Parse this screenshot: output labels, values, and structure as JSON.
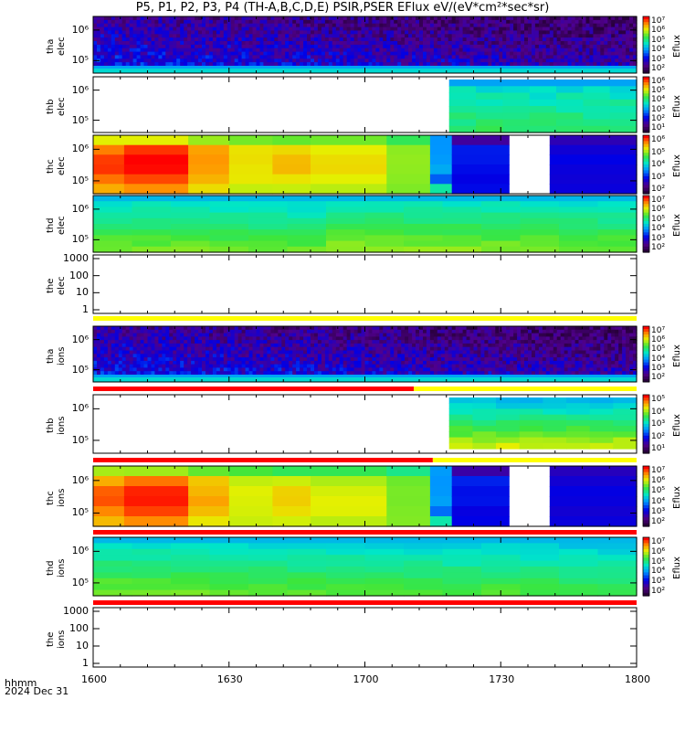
{
  "title": "P5, P1, P2, P3, P4 (TH-A,B,C,D,E) PSIR,PSER EFlux eV/(eV*cm²*sec*sr)",
  "footer": {
    "line1": "hhmm",
    "line2": "2024 Dec 31"
  },
  "chart_data": [
    {
      "type": "heatmap",
      "probe": "tha",
      "species": "elec",
      "ylabel_lines": [
        "tha",
        "elec"
      ],
      "yscale": "log",
      "yticks": [
        "10⁶",
        "10⁵"
      ],
      "colorbar_label": "Eflux",
      "colorbar_ticks": [
        "10⁷",
        "10⁶",
        "10⁵",
        "10⁴",
        "10³",
        "10²"
      ]
    },
    {
      "type": "heatmap",
      "probe": "thb",
      "species": "elec",
      "ylabel_lines": [
        "thb",
        "elec"
      ],
      "yscale": "log",
      "yticks": [
        "10⁶",
        "10⁵"
      ],
      "colorbar_label": "Eflux",
      "colorbar_ticks": [
        "10⁶",
        "10⁵",
        "10⁴",
        "10³",
        "10²",
        "10¹"
      ]
    },
    {
      "type": "heatmap",
      "probe": "thc",
      "species": "elec",
      "ylabel_lines": [
        "thc",
        "elec"
      ],
      "yscale": "log",
      "yticks": [
        "10⁶",
        "10⁵"
      ],
      "colorbar_label": "Eflux",
      "colorbar_ticks": [
        "10⁶",
        "10⁵",
        "10⁴",
        "10³",
        "10²"
      ]
    },
    {
      "type": "heatmap",
      "probe": "thd",
      "species": "elec",
      "ylabel_lines": [
        "thd",
        "elec"
      ],
      "yscale": "log",
      "yticks": [
        "10⁶",
        "10⁵"
      ],
      "colorbar_label": "Eflux",
      "colorbar_ticks": [
        "10⁷",
        "10⁶",
        "10⁵",
        "10⁴",
        "10³",
        "10²"
      ]
    },
    {
      "type": "heatmap",
      "probe": "the",
      "species": "elec",
      "ylabel_lines": [
        "the",
        "elec"
      ],
      "yscale": "log",
      "yticks": [
        "1000",
        "100",
        "10",
        "1"
      ],
      "colorbar_label": "",
      "colorbar_ticks": []
    },
    {
      "type": "heatmap",
      "probe": "tha",
      "species": "ions",
      "ylabel_lines": [
        "tha",
        "ions"
      ],
      "yscale": "log",
      "yticks": [
        "10⁶",
        "10⁵"
      ],
      "colorbar_label": "Eflux",
      "colorbar_ticks": [
        "10⁷",
        "10⁶",
        "10⁵",
        "10⁴",
        "10³",
        "10²"
      ]
    },
    {
      "type": "heatmap",
      "probe": "thb",
      "species": "ions",
      "ylabel_lines": [
        "thb",
        "ions"
      ],
      "yscale": "log",
      "yticks": [
        "10⁶",
        "10⁵"
      ],
      "colorbar_label": "Eflux",
      "colorbar_ticks": [
        "10⁵",
        "10⁴",
        "10³",
        "10²",
        "10¹"
      ]
    },
    {
      "type": "heatmap",
      "probe": "thc",
      "species": "ions",
      "ylabel_lines": [
        "thc",
        "ions"
      ],
      "yscale": "log",
      "yticks": [
        "10⁶",
        "10⁵"
      ],
      "colorbar_label": "Eflux",
      "colorbar_ticks": [
        "10⁷",
        "10⁶",
        "10⁵",
        "10⁴",
        "10³",
        "10²"
      ]
    },
    {
      "type": "heatmap",
      "probe": "thd",
      "species": "ions",
      "ylabel_lines": [
        "thd",
        "ions"
      ],
      "yscale": "log",
      "yticks": [
        "10⁶",
        "10⁵"
      ],
      "colorbar_label": "Eflux",
      "colorbar_ticks": [
        "10⁷",
        "10⁶",
        "10⁵",
        "10⁴",
        "10³",
        "10²"
      ]
    },
    {
      "type": "heatmap",
      "probe": "the",
      "species": "ions",
      "ylabel_lines": [
        "the",
        "ions"
      ],
      "yscale": "log",
      "yticks": [
        "1000",
        "100",
        "10",
        "1"
      ],
      "colorbar_label": "",
      "colorbar_ticks": []
    }
  ],
  "x_axis": {
    "ticks": [
      "1600",
      "1630",
      "1700",
      "1730",
      "1800"
    ]
  }
}
